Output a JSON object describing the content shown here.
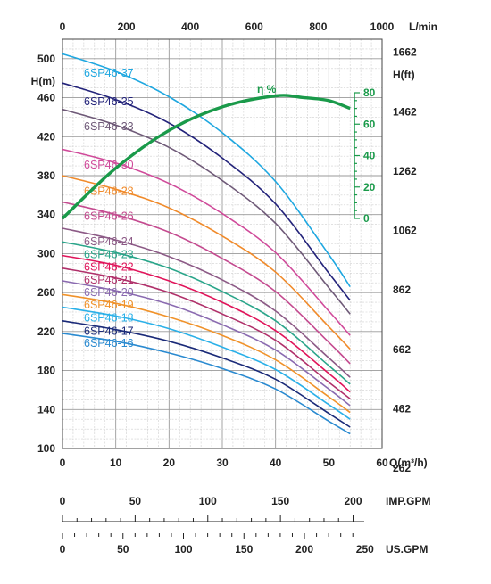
{
  "chart_data": {
    "type": "line",
    "axes": {
      "x_top_label": "L/min",
      "x_top_ticks": [
        0,
        200,
        400,
        600,
        800,
        1000
      ],
      "x_bottom_label": "Q(m³/h)",
      "x_bottom_ticks": [
        0,
        10,
        20,
        30,
        40,
        50,
        60
      ],
      "xlim": [
        0,
        60
      ],
      "y_left_label": "H(m)",
      "y_left_ticks": [
        100,
        140,
        180,
        220,
        260,
        300,
        340,
        380,
        420,
        460,
        500
      ],
      "ylim": [
        100,
        520
      ],
      "y_right_label": "H(ft)",
      "y_right_ticks": [
        262,
        462,
        662,
        862,
        1062,
        1262,
        1462,
        1662
      ],
      "eff_label": "η %",
      "eff_ticks": [
        0,
        20,
        40,
        60,
        80
      ],
      "imp_gpm_label": "IMP.GPM",
      "imp_gpm_ticks": [
        0,
        50,
        100,
        150,
        200
      ],
      "us_gpm_label": "US.GPM",
      "us_gpm_ticks": [
        0,
        50,
        100,
        150,
        200,
        250
      ],
      "grid": true
    },
    "x": [
      0,
      10,
      20,
      30,
      40,
      50,
      54
    ],
    "series": [
      {
        "name": "6SP46-37",
        "color": "#1ea7e0",
        "values": [
          505,
          487,
          461,
          424,
          374,
          299,
          266
        ]
      },
      {
        "name": "6SP46-35",
        "color": "#23237a",
        "values": [
          475,
          458,
          434,
          398,
          351,
          280,
          252
        ]
      },
      {
        "name": "6SP46-33",
        "color": "#6f5a78",
        "values": [
          448,
          432,
          409,
          375,
          331,
          265,
          238
        ]
      },
      {
        "name": "6SP46-30",
        "color": "#d04a9a",
        "values": [
          407,
          393,
          372,
          341,
          301,
          241,
          216
        ]
      },
      {
        "name": "6SP46-28",
        "color": "#f08a2a",
        "values": [
          380,
          366,
          347,
          318,
          281,
          225,
          202
        ]
      },
      {
        "name": "6SP46-26",
        "color": "#c44a8f",
        "values": [
          353,
          340,
          322,
          295,
          261,
          209,
          187
        ]
      },
      {
        "name": "6SP46-24",
        "color": "#8c5a86",
        "values": [
          326,
          314,
          297,
          273,
          241,
          193,
          173
        ]
      },
      {
        "name": "6SP46-23",
        "color": "#2aa58a",
        "values": [
          312,
          301,
          285,
          261,
          231,
          185,
          166
        ]
      },
      {
        "name": "6SP46-22",
        "color": "#e0145a",
        "values": [
          298,
          288,
          272,
          250,
          221,
          177,
          158
        ]
      },
      {
        "name": "6SP46-21",
        "color": "#b0306a",
        "values": [
          285,
          275,
          260,
          238,
          211,
          168,
          151
        ]
      },
      {
        "name": "6SP46-20",
        "color": "#8a6ab0",
        "values": [
          272,
          262,
          248,
          227,
          201,
          161,
          144
        ]
      },
      {
        "name": "6SP46-19",
        "color": "#f0922a",
        "values": [
          258,
          249,
          235,
          216,
          191,
          153,
          137
        ]
      },
      {
        "name": "6SP46-18",
        "color": "#2ab0e8",
        "values": [
          245,
          236,
          223,
          204,
          181,
          145,
          130
        ]
      },
      {
        "name": "6SP46-17",
        "color": "#1a2a78",
        "values": [
          231,
          222,
          210,
          193,
          171,
          136,
          122
        ]
      },
      {
        "name": "6SP46-16",
        "color": "#2a8ad0",
        "values": [
          218,
          210,
          198,
          182,
          161,
          128,
          115
        ]
      }
    ],
    "efficiency": {
      "name": "η %",
      "color": "#1a9a4a",
      "x": [
        0,
        10,
        20,
        30,
        40,
        45,
        50,
        54
      ],
      "values": [
        0,
        32,
        56,
        71,
        78,
        77,
        75,
        70
      ]
    }
  }
}
